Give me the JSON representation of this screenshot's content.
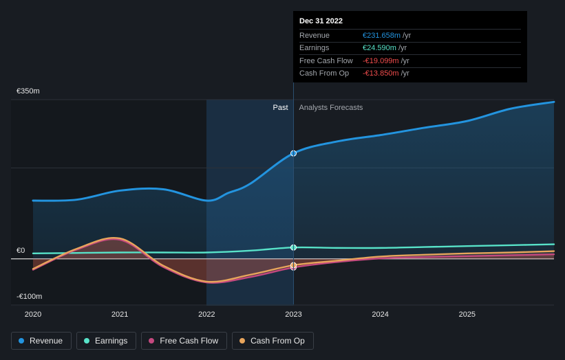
{
  "tooltip": {
    "date": "Dec 31 2022",
    "rows": [
      {
        "label": "Revenue",
        "value": "€231.658m",
        "unit": "/yr",
        "color": "#2394df"
      },
      {
        "label": "Earnings",
        "value": "€24.590m",
        "unit": "/yr",
        "color": "#58e3c9"
      },
      {
        "label": "Free Cash Flow",
        "value": "-€19.099m",
        "unit": "/yr",
        "color": "#f24d4d"
      },
      {
        "label": "Cash From Op",
        "value": "-€13.850m",
        "unit": "/yr",
        "color": "#f24d4d"
      }
    ]
  },
  "section_labels": {
    "past": "Past",
    "forecast": "Analysts Forecasts"
  },
  "legend": [
    {
      "label": "Revenue",
      "color": "#2394df"
    },
    {
      "label": "Earnings",
      "color": "#58e3c9"
    },
    {
      "label": "Free Cash Flow",
      "color": "#c4497f"
    },
    {
      "label": "Cash From Op",
      "color": "#e8a55c"
    }
  ],
  "chart_data": {
    "type": "line",
    "y_tick_labels": [
      "€350m",
      "€0",
      "-€100m"
    ],
    "y_ticks": [
      350,
      0,
      -100
    ],
    "ylim": [
      -100,
      350
    ],
    "x_tick_labels": [
      "2020",
      "2021",
      "2022",
      "2023",
      "2024",
      "2025"
    ],
    "x_ticks": [
      2020,
      2021,
      2022,
      2023,
      2024,
      2025
    ],
    "xlim": [
      2020,
      2026
    ],
    "divider_x": 2023,
    "highlight_x": 2023,
    "grid": "horizontal",
    "series": [
      {
        "name": "Revenue",
        "color": "#2394df",
        "fill": true,
        "points": [
          [
            2020,
            128
          ],
          [
            2020.5,
            130
          ],
          [
            2021,
            150
          ],
          [
            2021.5,
            153
          ],
          [
            2022,
            128
          ],
          [
            2022.25,
            145
          ],
          [
            2022.5,
            165
          ],
          [
            2023,
            232
          ],
          [
            2023.5,
            258
          ],
          [
            2024,
            272
          ],
          [
            2024.5,
            288
          ],
          [
            2025,
            303
          ],
          [
            2025.5,
            330
          ],
          [
            2026,
            345
          ]
        ]
      },
      {
        "name": "Earnings",
        "color": "#58e3c9",
        "fill": false,
        "points": [
          [
            2020,
            12
          ],
          [
            2020.5,
            13
          ],
          [
            2021,
            14
          ],
          [
            2021.5,
            14
          ],
          [
            2022,
            14
          ],
          [
            2022.5,
            18
          ],
          [
            2023,
            25
          ],
          [
            2023.5,
            24
          ],
          [
            2024,
            24
          ],
          [
            2024.5,
            26
          ],
          [
            2025,
            28
          ],
          [
            2025.5,
            30
          ],
          [
            2026,
            32
          ]
        ]
      },
      {
        "name": "Free Cash Flow",
        "color": "#c4497f",
        "fill": true,
        "points": [
          [
            2020,
            -24
          ],
          [
            2020.5,
            20
          ],
          [
            2021,
            42
          ],
          [
            2021.5,
            -18
          ],
          [
            2022,
            -52
          ],
          [
            2022.5,
            -40
          ],
          [
            2023,
            -19
          ],
          [
            2023.5,
            -7
          ],
          [
            2024,
            1
          ],
          [
            2024.5,
            4
          ],
          [
            2025,
            6
          ],
          [
            2025.5,
            8
          ],
          [
            2026,
            10
          ]
        ]
      },
      {
        "name": "Cash From Op",
        "color": "#e8a55c",
        "fill": true,
        "points": [
          [
            2020,
            -22
          ],
          [
            2020.5,
            22
          ],
          [
            2021,
            45
          ],
          [
            2021.5,
            -15
          ],
          [
            2022,
            -50
          ],
          [
            2022.5,
            -35
          ],
          [
            2023,
            -14
          ],
          [
            2023.5,
            -4
          ],
          [
            2024,
            5
          ],
          [
            2024.5,
            9
          ],
          [
            2025,
            12
          ],
          [
            2025.5,
            14
          ],
          [
            2026,
            17
          ]
        ]
      }
    ]
  }
}
